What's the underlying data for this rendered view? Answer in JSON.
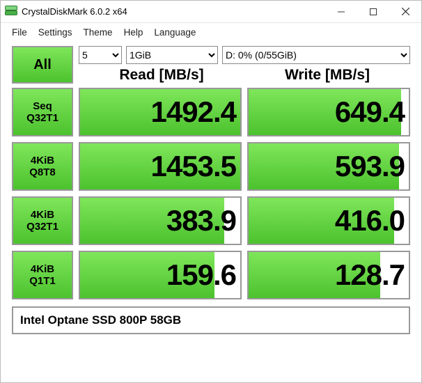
{
  "window": {
    "title": "CrystalDiskMark 6.0.2 x64"
  },
  "menu": {
    "file": "File",
    "settings": "Settings",
    "theme": "Theme",
    "help": "Help",
    "language": "Language"
  },
  "controls": {
    "all_label": "All",
    "count_value": "5",
    "size_value": "1GiB",
    "drive_value": "D: 0% (0/55GiB)"
  },
  "headers": {
    "read": "Read [MB/s]",
    "write": "Write [MB/s]"
  },
  "tests": [
    {
      "label1": "Seq",
      "label2": "Q32T1",
      "read": "1492.4",
      "read_pct": 100,
      "write": "649.4",
      "write_pct": 95
    },
    {
      "label1": "4KiB",
      "label2": "Q8T8",
      "read": "1453.5",
      "read_pct": 100,
      "write": "593.9",
      "write_pct": 94
    },
    {
      "label1": "4KiB",
      "label2": "Q32T1",
      "read": "383.9",
      "read_pct": 90,
      "write": "416.0",
      "write_pct": 91
    },
    {
      "label1": "4KiB",
      "label2": "Q1T1",
      "read": "159.6",
      "read_pct": 84,
      "write": "128.7",
      "write_pct": 82
    }
  ],
  "footer": {
    "device": "Intel Optane SSD 800P 58GB"
  },
  "colors": {
    "green_top": "#7fe65a",
    "green_bottom": "#4cc22e",
    "border": "#999999",
    "background": "#ffffff",
    "text": "#000000"
  }
}
